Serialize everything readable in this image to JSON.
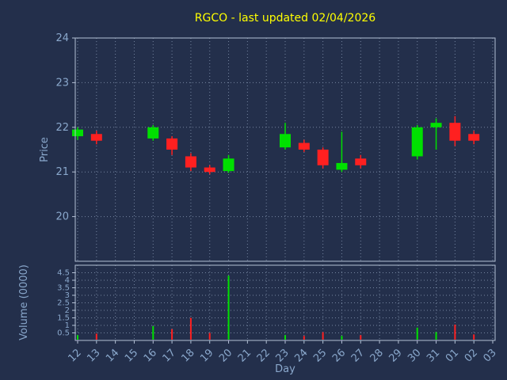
{
  "title": "RGCO - last updated 02/04/2026",
  "colors": {
    "background": "#232f4b",
    "title": "#ffff00",
    "axis": "#8aa8cc",
    "grid": "#74849f",
    "border": "#b3c0d4",
    "up": "#00e000",
    "down": "#ff2020"
  },
  "chart_data": [
    {
      "type": "candlestick",
      "title": "RGCO - last updated 02/04/2026",
      "xlabel": "Day",
      "ylabel": "Price",
      "ylim": [
        19,
        24
      ],
      "yticks": [
        20,
        21,
        22,
        23,
        24
      ],
      "grid": true,
      "categories": [
        "12",
        "13",
        "14",
        "15",
        "16",
        "17",
        "18",
        "19",
        "20",
        "21",
        "22",
        "23",
        "24",
        "25",
        "26",
        "27",
        "28",
        "29",
        "30",
        "31",
        "01",
        "02",
        "03"
      ],
      "candles": [
        {
          "o": 21.8,
          "h": 22.0,
          "l": 21.72,
          "c": 21.95
        },
        {
          "o": 21.85,
          "h": 21.92,
          "l": 21.62,
          "c": 21.7
        },
        null,
        null,
        {
          "o": 21.75,
          "h": 22.05,
          "l": 21.7,
          "c": 22.0
        },
        {
          "o": 21.75,
          "h": 21.8,
          "l": 21.38,
          "c": 21.5
        },
        {
          "o": 21.35,
          "h": 21.42,
          "l": 21.02,
          "c": 21.1
        },
        {
          "o": 21.1,
          "h": 21.15,
          "l": 20.95,
          "c": 21.0
        },
        {
          "o": 21.02,
          "h": 21.38,
          "l": 20.98,
          "c": 21.3
        },
        null,
        null,
        {
          "o": 21.55,
          "h": 22.1,
          "l": 21.5,
          "c": 21.85
        },
        {
          "o": 21.65,
          "h": 21.72,
          "l": 21.45,
          "c": 21.5
        },
        {
          "o": 21.5,
          "h": 21.55,
          "l": 21.08,
          "c": 21.15
        },
        {
          "o": 21.05,
          "h": 21.9,
          "l": 21.0,
          "c": 21.2
        },
        {
          "o": 21.3,
          "h": 21.38,
          "l": 21.08,
          "c": 21.15
        },
        null,
        null,
        {
          "o": 21.35,
          "h": 22.05,
          "l": 21.28,
          "c": 22.0
        },
        {
          "o": 22.0,
          "h": 22.2,
          "l": 21.5,
          "c": 22.1
        },
        {
          "o": 22.1,
          "h": 22.25,
          "l": 21.58,
          "c": 21.7
        },
        {
          "o": 21.85,
          "h": 21.92,
          "l": 21.62,
          "c": 21.7
        },
        null
      ]
    },
    {
      "type": "bar",
      "ylabel": "Volume (0000)",
      "ylim": [
        0,
        5
      ],
      "yticks": [
        0.5,
        1,
        1.5,
        2,
        2.5,
        3,
        3.5,
        4,
        4.5
      ],
      "grid": true,
      "values": [
        0.35,
        0.45,
        0,
        0,
        0.95,
        0.75,
        1.5,
        0.5,
        4.3,
        0,
        0,
        0.35,
        0.3,
        0.55,
        0.3,
        0.35,
        0,
        0,
        0.85,
        0.55,
        1.05,
        0.4,
        0
      ]
    }
  ]
}
